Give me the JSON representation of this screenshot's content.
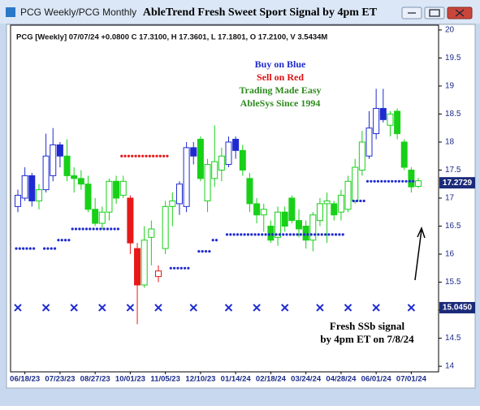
{
  "window_title": "PCG Weekly/PCG Monthly",
  "chart_data": {
    "type": "candlestick",
    "title": "AbleTrend Fresh Sweet Sport Signal by 4pm ET",
    "info_line": "PCG [Weekly] 07/07/24 +0.0800 C 17.3100, H 17.3601, L 17.1801, O 17.2100, V 3.5434M",
    "legend_lines": [
      {
        "text": "Buy on Blue",
        "color": "#1f2bd0"
      },
      {
        "text": "Sell on Red",
        "color": "#e01010"
      },
      {
        "text": "Trading Made Easy",
        "color": "#2e8b1e"
      },
      {
        "text": "AbleSys Since 1994",
        "color": "#2e8b1e"
      }
    ],
    "annotation": [
      "Fresh SSb signal",
      "by 4pm ET on 7/8/24"
    ],
    "categories": [
      null,
      "06/18/23",
      null,
      null,
      null,
      null,
      "07/23/23",
      null,
      null,
      null,
      null,
      "08/27/23",
      null,
      null,
      null,
      null,
      "10/01/23",
      null,
      null,
      null,
      null,
      "11/05/23",
      null,
      null,
      null,
      null,
      "12/10/23",
      null,
      null,
      null,
      null,
      "01/14/24",
      null,
      null,
      null,
      null,
      "02/18/24",
      null,
      null,
      null,
      null,
      "03/24/24",
      null,
      null,
      null,
      null,
      "04/28/24",
      null,
      null,
      null,
      null,
      "06/01/24",
      null,
      null,
      null,
      null,
      "07/01/24",
      null
    ],
    "open": [
      16.85,
      17.0,
      17.4,
      16.95,
      17.15,
      17.4,
      17.95,
      17.75,
      17.4,
      17.35,
      17.25,
      16.8,
      16.55,
      16.75,
      17.3,
      17.05,
      17.0,
      16.1,
      15.45,
      16.3,
      15.6,
      16.1,
      16.85,
      16.9,
      16.85,
      17.9,
      18.05,
      16.95,
      17.35,
      17.5,
      17.6,
      18.05,
      17.85,
      17.35,
      16.9,
      16.7,
      16.5,
      16.3,
      16.75,
      17.0,
      16.6,
      16.5,
      16.25,
      16.6,
      16.9,
      16.9,
      16.75,
      16.8,
      16.95,
      17.5,
      17.75,
      18.15,
      18.6,
      18.3,
      18.55,
      18.0,
      17.5,
      17.21
    ],
    "high": [
      17.15,
      17.55,
      17.45,
      17.25,
      18.15,
      18.25,
      18.0,
      18.05,
      17.55,
      17.5,
      17.4,
      17.0,
      16.85,
      17.35,
      17.4,
      17.4,
      17.05,
      16.2,
      16.5,
      16.6,
      15.8,
      16.95,
      17.1,
      17.3,
      18.0,
      18.0,
      18.1,
      17.7,
      18.3,
      17.9,
      18.1,
      18.1,
      17.95,
      17.45,
      17.0,
      16.9,
      16.6,
      16.85,
      16.85,
      17.05,
      16.8,
      16.6,
      16.75,
      17.0,
      17.1,
      16.95,
      17.15,
      17.4,
      17.7,
      18.2,
      18.55,
      18.95,
      18.95,
      18.55,
      18.6,
      18.05,
      17.55,
      17.3601
    ],
    "low": [
      16.75,
      16.95,
      16.85,
      16.8,
      17.1,
      17.3,
      17.55,
      17.3,
      17.1,
      17.15,
      16.75,
      16.5,
      16.45,
      16.6,
      16.9,
      17.0,
      16.0,
      14.75,
      15.4,
      15.8,
      15.5,
      16.0,
      16.5,
      16.7,
      16.75,
      17.6,
      17.3,
      16.75,
      17.2,
      17.3,
      17.55,
      17.7,
      17.4,
      16.75,
      16.55,
      16.4,
      16.2,
      16.15,
      16.4,
      16.55,
      16.3,
      16.1,
      16.05,
      16.5,
      16.2,
      16.6,
      16.6,
      16.75,
      16.9,
      17.4,
      17.7,
      18.05,
      18.35,
      18.1,
      18.05,
      17.5,
      17.1,
      17.1801
    ],
    "close": [
      17.05,
      17.4,
      16.95,
      17.15,
      17.75,
      17.95,
      17.75,
      17.4,
      17.35,
      17.25,
      16.8,
      16.55,
      16.75,
      17.3,
      17.0,
      17.3,
      16.2,
      15.45,
      16.25,
      16.45,
      15.7,
      16.85,
      16.95,
      17.25,
      17.9,
      17.75,
      17.35,
      17.6,
      17.65,
      17.75,
      18.0,
      17.85,
      17.5,
      16.9,
      16.7,
      16.8,
      16.25,
      16.75,
      16.5,
      16.6,
      16.45,
      16.25,
      16.7,
      16.9,
      16.95,
      16.7,
      17.05,
      17.3,
      17.55,
      18.0,
      18.25,
      18.6,
      18.4,
      18.5,
      18.15,
      17.55,
      17.2,
      17.31
    ],
    "signal": [
      "blue",
      "blue",
      "blue",
      "green",
      "blue",
      "blue",
      "blue",
      "green",
      "green",
      "green",
      "green",
      "green",
      "green",
      "green",
      "green",
      "green",
      "red",
      "red",
      "green",
      "green",
      "red",
      "green",
      "green",
      "blue",
      "blue",
      "blue",
      "green",
      "green",
      "green",
      "green",
      "blue",
      "blue",
      "green",
      "green",
      "green",
      "green",
      "green",
      "green",
      "green",
      "green",
      "green",
      "green",
      "green",
      "green",
      "green",
      "green",
      "green",
      "green",
      "green",
      "green",
      "blue",
      "blue",
      "blue",
      "green",
      "green",
      "green",
      "green",
      "green"
    ],
    "palette": {
      "blue": "#1f2bd0",
      "green": "#18d018",
      "red": "#e81818"
    },
    "series": [
      {
        "color": "#1f2bd0",
        "marker": "dot",
        "values": [
          16.1,
          16.1,
          16.1,
          null,
          16.1,
          16.1,
          16.25,
          16.25,
          16.45,
          16.45,
          16.45,
          16.45,
          16.45,
          16.45,
          16.45,
          null,
          null,
          null,
          null,
          null,
          null,
          null,
          15.75,
          15.75,
          15.75,
          null,
          16.05,
          16.05,
          16.25,
          null,
          16.35,
          16.35,
          16.35,
          16.35,
          16.35,
          16.35,
          16.35,
          16.35,
          16.35,
          16.35,
          16.35,
          16.35,
          16.35,
          16.35,
          16.35,
          16.35,
          16.35,
          null,
          16.95,
          16.95,
          17.3,
          17.3,
          17.3,
          17.3,
          17.3,
          17.3,
          17.3,
          null
        ]
      },
      {
        "color": "#e81818",
        "marker": "dot",
        "values": [
          null,
          null,
          null,
          null,
          null,
          null,
          null,
          null,
          null,
          null,
          null,
          null,
          null,
          null,
          null,
          17.75,
          17.75,
          17.75,
          17.75,
          17.75,
          17.75,
          17.75,
          null,
          null,
          null,
          null,
          null,
          null,
          null,
          null,
          null,
          null,
          null,
          null,
          null,
          null,
          null,
          null,
          null,
          null,
          null,
          null,
          null,
          null,
          null,
          null,
          null,
          null,
          null,
          null,
          null,
          null,
          null,
          null,
          null,
          null,
          null,
          null
        ]
      },
      {
        "color": "#1f2bd0",
        "marker": "cross",
        "values": [
          15.045,
          null,
          null,
          null,
          15.045,
          null,
          null,
          null,
          15.045,
          null,
          null,
          null,
          15.045,
          null,
          null,
          null,
          15.045,
          null,
          null,
          null,
          15.045,
          null,
          null,
          null,
          null,
          15.045,
          null,
          null,
          null,
          null,
          15.045,
          null,
          null,
          null,
          15.045,
          null,
          null,
          null,
          15.045,
          null,
          null,
          null,
          null,
          15.045,
          null,
          null,
          null,
          15.045,
          null,
          null,
          null,
          15.045,
          null,
          null,
          null,
          null,
          15.045,
          null
        ]
      }
    ],
    "axis_markers": [
      {
        "value": 17.2729,
        "label": "17.2729"
      },
      {
        "value": 15.045,
        "label": "15.0450"
      }
    ],
    "ylim": [
      13.9,
      20.1
    ],
    "yticks": [
      14,
      14.5,
      15,
      15.5,
      16,
      16.5,
      17,
      17.5,
      18,
      18.5,
      19,
      19.5,
      20
    ]
  }
}
